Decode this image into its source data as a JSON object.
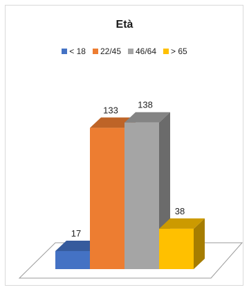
{
  "chart_data": {
    "type": "bar",
    "title": "Età",
    "categories": [
      "< 18",
      "22/45",
      "46/64",
      "> 65"
    ],
    "values": [
      17,
      133,
      138,
      38
    ],
    "colors": [
      "#4472c4",
      "#ed7d31",
      "#a5a5a5",
      "#ffc000"
    ],
    "xlabel": "",
    "ylabel": "",
    "ylim": [
      0,
      160
    ],
    "grid": false,
    "legend_position": "top",
    "data_labels": true,
    "three_d": true
  }
}
